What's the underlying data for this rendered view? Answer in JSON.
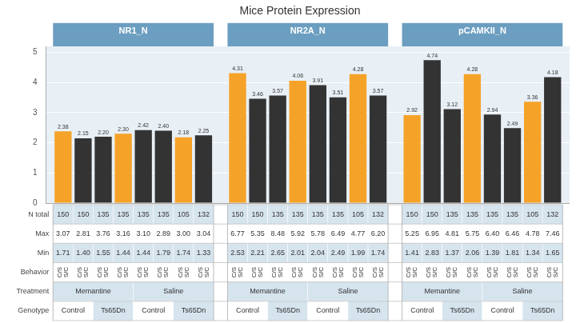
{
  "chart_data": {
    "type": "bar",
    "title": "Mice Protein Expression",
    "categories": [
      "NR1_N",
      "NR2A_N",
      "pCAMKII_N"
    ],
    "series": [
      {
        "color": "#F5A328",
        "values": [
          2.38,
          4.31,
          2.92
        ],
        "value_labels": [
          "2.38",
          "4.31",
          "2.92"
        ]
      },
      {
        "color": "#333333",
        "values": [
          2.15,
          3.46,
          4.74
        ],
        "value_labels": [
          "2.15",
          "3.46",
          "4.74"
        ]
      },
      {
        "color": "#333333",
        "values": [
          2.2,
          3.57,
          3.12
        ],
        "value_labels": [
          "2.20",
          "3.57",
          "3.12"
        ]
      },
      {
        "color": "#F5A328",
        "values": [
          2.3,
          4.06,
          4.28
        ],
        "value_labels": [
          "2.30",
          "4.06",
          "4.28"
        ]
      },
      {
        "color": "#333333",
        "values": [
          2.42,
          3.91,
          2.94
        ],
        "value_labels": [
          "2.42",
          "3.91",
          "2.94"
        ]
      },
      {
        "color": "#333333",
        "values": [
          2.4,
          3.51,
          2.49
        ],
        "value_labels": [
          "2.40",
          "3.51",
          "2.49"
        ]
      },
      {
        "color": "#F5A328",
        "values": [
          2.18,
          4.28,
          3.36
        ],
        "value_labels": [
          "2.18",
          "4.28",
          "3.36"
        ]
      },
      {
        "color": "#333333",
        "values": [
          2.25,
          3.57,
          4.18
        ],
        "value_labels": [
          "2.25",
          "3.57",
          "4.18"
        ]
      }
    ],
    "ylim": [
      0,
      5.2
    ],
    "yticks": [
      0,
      1,
      2,
      3,
      4,
      5
    ],
    "grid": true,
    "data_labels": true,
    "table": {
      "rows": [
        {
          "label": "N total",
          "cells": [
            "150",
            "150",
            "135",
            "135",
            "135",
            "135",
            "105",
            "132",
            "150",
            "150",
            "135",
            "135",
            "135",
            "135",
            "105",
            "132",
            "150",
            "150",
            "135",
            "135",
            "135",
            "135",
            "105",
            "132"
          ]
        },
        {
          "label": "Max",
          "cells": [
            "3.07",
            "2.81",
            "3.76",
            "3.16",
            "3.10",
            "2.89",
            "3.00",
            "3.04",
            "6.77",
            "5.35",
            "8.48",
            "5.92",
            "5.78",
            "6.49",
            "4.77",
            "6.20",
            "5.25",
            "6.95",
            "4.81",
            "5.75",
            "6.40",
            "6.46",
            "4.78",
            "7.46"
          ]
        },
        {
          "label": "Min",
          "cells": [
            "1.71",
            "1.40",
            "1.55",
            "1.44",
            "1.44",
            "1.79",
            "1.74",
            "1.33",
            "2.53",
            "2.21",
            "2.65",
            "2.01",
            "2.04",
            "2.49",
            "1.99",
            "1.74",
            "1.41",
            "2.83",
            "1.37",
            "2.06",
            "1.39",
            "1.81",
            "1.34",
            "1.65"
          ]
        },
        {
          "label": "Behavior",
          "cells": [
            "C/S\nS/C",
            "C/S\nS/C",
            "C/S\nS/C",
            "C/S\nS/C",
            "C/S\nS/C",
            "C/S\nS/C",
            "C/S\nS/C",
            "C/S\nS/C",
            "C/S\nS/C",
            "C/S\nS/C",
            "C/S\nS/C",
            "C/S\nS/C",
            "C/S\nS/C",
            "C/S\nS/C",
            "C/S\nS/C",
            "C/S\nS/C",
            "C/S\nS/C",
            "C/S\nS/C",
            "C/S\nS/C",
            "C/S\nS/C",
            "C/S\nS/C",
            "C/S\nS/C",
            "C/S\nS/C",
            "C/S\nS/C"
          ]
        },
        {
          "label": "Treatment",
          "cells": [
            {
              "text": "Memantine",
              "span": 4
            },
            {
              "text": "Saline",
              "span": 4
            },
            {
              "text": "Memantine",
              "span": 4
            },
            {
              "text": "Saline",
              "span": 4
            },
            {
              "text": "Memantine",
              "span": 4
            },
            {
              "text": "Saline",
              "span": 4
            }
          ]
        },
        {
          "label": "Genotype",
          "cells": [
            {
              "text": "Control",
              "span": 2
            },
            {
              "text": "Ts65Dn",
              "span": 2
            },
            {
              "text": "Control",
              "span": 2
            },
            {
              "text": "Ts65Dn",
              "span": 2
            },
            {
              "text": "Control",
              "span": 2
            },
            {
              "text": "Ts65Dn",
              "span": 2
            },
            {
              "text": "Control",
              "span": 2
            },
            {
              "text": "Ts65Dn",
              "span": 2
            },
            {
              "text": "Control",
              "span": 2
            },
            {
              "text": "Ts65Dn",
              "span": 2
            },
            {
              "text": "Control",
              "span": 2
            },
            {
              "text": "Ts65Dn",
              "span": 2
            }
          ]
        }
      ]
    }
  }
}
